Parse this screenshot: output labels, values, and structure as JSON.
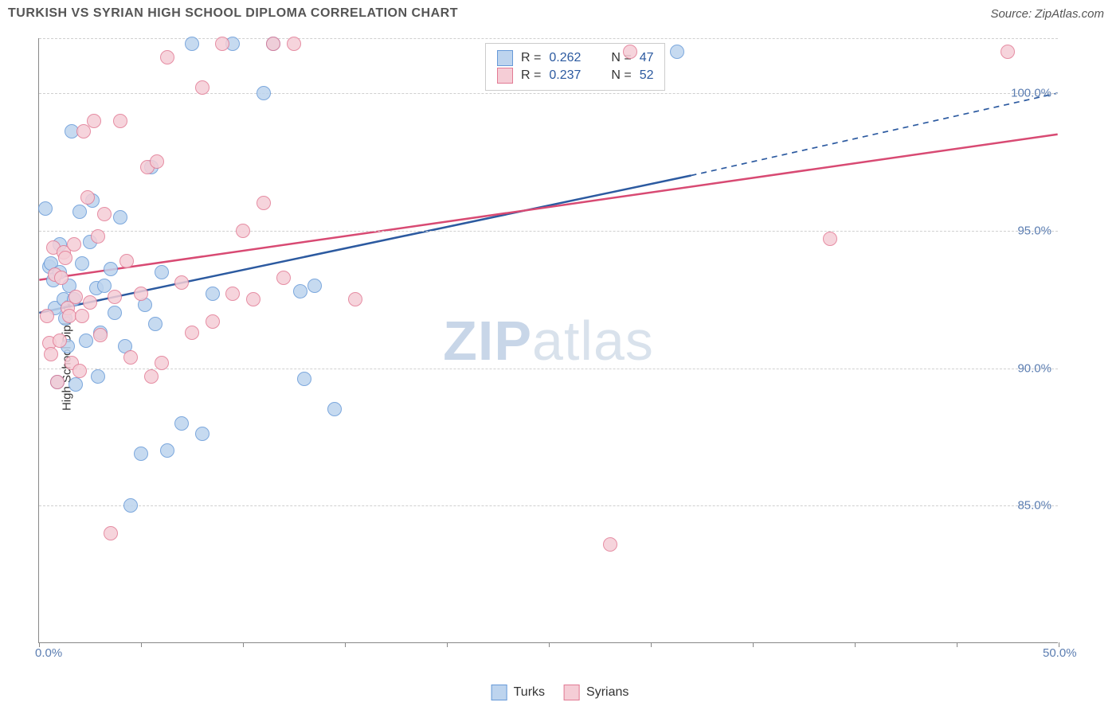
{
  "header": {
    "title": "TURKISH VS SYRIAN HIGH SCHOOL DIPLOMA CORRELATION CHART",
    "source": "Source: ZipAtlas.com"
  },
  "chart": {
    "type": "scatter",
    "ylabel": "High School Diploma",
    "xlim": [
      0,
      50
    ],
    "ylim": [
      80,
      102
    ],
    "xticks": [
      0,
      5,
      10,
      15,
      20,
      25,
      30,
      35,
      40,
      45,
      50
    ],
    "xtick_labels": {
      "0": "0.0%",
      "50": "50.0%"
    },
    "ygrid": [
      85,
      90,
      95,
      100,
      102
    ],
    "ytick_labels": {
      "85": "85.0%",
      "90": "90.0%",
      "95": "95.0%",
      "100": "100.0%"
    },
    "background_color": "#ffffff",
    "grid_color": "#d0d0d0",
    "axis_color": "#888888",
    "marker_radius": 9,
    "marker_stroke_width": 1.5,
    "line_width": 2.5,
    "watermark": {
      "zip": "ZIP",
      "atlas": "atlas",
      "color": "#d9e2ec"
    },
    "series": [
      {
        "name": "Turks",
        "fill": "#bdd4ee",
        "stroke": "#6699d8",
        "line_color": "#2c5aa0",
        "r_value": "0.262",
        "n_value": "47",
        "regression": {
          "x1": 0,
          "y1": 92.0,
          "x2": 32,
          "y2": 97.0,
          "x2_dash": 50,
          "y2_dash": 100.0
        },
        "points": [
          [
            0.3,
            95.8
          ],
          [
            0.5,
            93.7
          ],
          [
            0.6,
            93.8
          ],
          [
            0.7,
            93.2
          ],
          [
            0.8,
            92.2
          ],
          [
            0.9,
            89.5
          ],
          [
            1.0,
            94.5
          ],
          [
            1.0,
            93.5
          ],
          [
            1.2,
            92.5
          ],
          [
            1.3,
            91.8
          ],
          [
            1.4,
            90.8
          ],
          [
            1.5,
            93.0
          ],
          [
            1.6,
            98.6
          ],
          [
            1.7,
            92.5
          ],
          [
            1.8,
            89.4
          ],
          [
            2.0,
            95.7
          ],
          [
            2.1,
            93.8
          ],
          [
            2.3,
            91.0
          ],
          [
            2.5,
            94.6
          ],
          [
            2.6,
            96.1
          ],
          [
            2.8,
            92.9
          ],
          [
            2.9,
            89.7
          ],
          [
            3.0,
            91.3
          ],
          [
            3.2,
            93.0
          ],
          [
            3.5,
            93.6
          ],
          [
            3.7,
            92.0
          ],
          [
            4.0,
            95.5
          ],
          [
            4.2,
            90.8
          ],
          [
            4.5,
            85.0
          ],
          [
            5.0,
            86.9
          ],
          [
            5.2,
            92.3
          ],
          [
            5.5,
            97.3
          ],
          [
            5.7,
            91.6
          ],
          [
            6.0,
            93.5
          ],
          [
            6.3,
            87.0
          ],
          [
            7.0,
            88.0
          ],
          [
            7.5,
            101.8
          ],
          [
            8.0,
            87.6
          ],
          [
            8.5,
            92.7
          ],
          [
            9.5,
            101.8
          ],
          [
            11.0,
            100.0
          ],
          [
            11.5,
            101.8
          ],
          [
            12.8,
            92.8
          ],
          [
            13.0,
            89.6
          ],
          [
            13.5,
            93.0
          ],
          [
            14.5,
            88.5
          ],
          [
            31.3,
            101.5
          ]
        ]
      },
      {
        "name": "Syrians",
        "fill": "#f5cdd6",
        "stroke": "#e27a94",
        "line_color": "#d84a73",
        "r_value": "0.237",
        "n_value": "52",
        "regression": {
          "x1": 0,
          "y1": 93.2,
          "x2": 50,
          "y2": 98.5
        },
        "points": [
          [
            0.4,
            91.9
          ],
          [
            0.5,
            90.9
          ],
          [
            0.6,
            90.5
          ],
          [
            0.7,
            94.4
          ],
          [
            0.8,
            93.4
          ],
          [
            0.9,
            89.5
          ],
          [
            1.0,
            91.0
          ],
          [
            1.1,
            93.3
          ],
          [
            1.2,
            94.2
          ],
          [
            1.3,
            94.0
          ],
          [
            1.4,
            92.2
          ],
          [
            1.5,
            91.9
          ],
          [
            1.6,
            90.2
          ],
          [
            1.7,
            94.5
          ],
          [
            1.8,
            92.6
          ],
          [
            2.0,
            89.9
          ],
          [
            2.1,
            91.9
          ],
          [
            2.2,
            98.6
          ],
          [
            2.4,
            96.2
          ],
          [
            2.5,
            92.4
          ],
          [
            2.7,
            99.0
          ],
          [
            2.9,
            94.8
          ],
          [
            3.0,
            91.2
          ],
          [
            3.2,
            95.6
          ],
          [
            3.5,
            84.0
          ],
          [
            3.7,
            92.6
          ],
          [
            4.0,
            99.0
          ],
          [
            4.3,
            93.9
          ],
          [
            4.5,
            90.4
          ],
          [
            5.0,
            92.7
          ],
          [
            5.3,
            97.3
          ],
          [
            5.5,
            89.7
          ],
          [
            5.8,
            97.5
          ],
          [
            6.0,
            90.2
          ],
          [
            6.3,
            101.3
          ],
          [
            7.0,
            93.1
          ],
          [
            7.5,
            91.3
          ],
          [
            8.0,
            100.2
          ],
          [
            8.5,
            91.7
          ],
          [
            9.0,
            101.8
          ],
          [
            9.5,
            92.7
          ],
          [
            10.0,
            95.0
          ],
          [
            10.5,
            92.5
          ],
          [
            11.0,
            96.0
          ],
          [
            11.5,
            101.8
          ],
          [
            12.0,
            93.3
          ],
          [
            12.5,
            101.8
          ],
          [
            15.5,
            92.5
          ],
          [
            28.0,
            83.6
          ],
          [
            29.0,
            101.5
          ],
          [
            38.8,
            94.7
          ],
          [
            47.5,
            101.5
          ]
        ]
      }
    ]
  },
  "legend_bottom": [
    {
      "label": "Turks",
      "fill": "#bdd4ee",
      "stroke": "#6699d8"
    },
    {
      "label": "Syrians",
      "fill": "#f5cdd6",
      "stroke": "#e27a94"
    }
  ]
}
